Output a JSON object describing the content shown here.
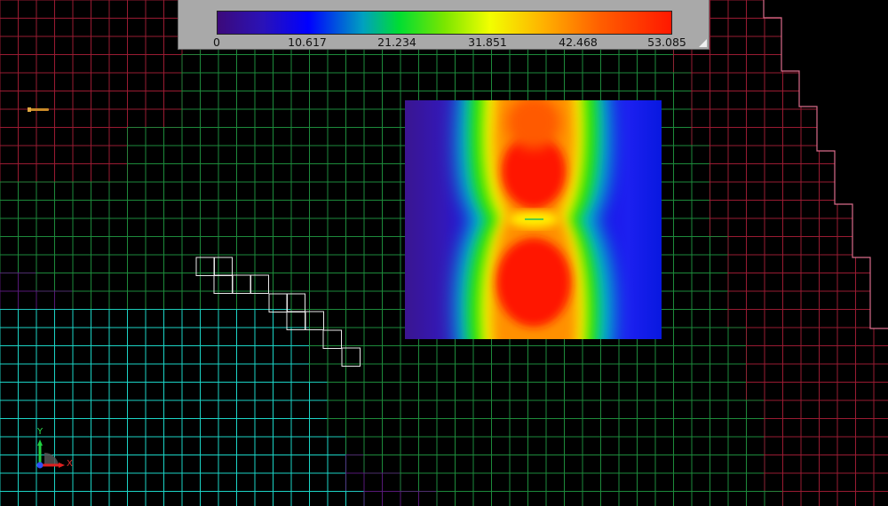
{
  "legend": {
    "ticks": [
      "0",
      "10.617",
      "21.234",
      "31.851",
      "42.468",
      "53.085"
    ],
    "min": 0,
    "max": 53.085
  },
  "triad": {
    "y_label": "Y",
    "x_label": "X"
  },
  "colors": {
    "mesh_green": "#1e8c3c",
    "mesh_red": "#9a1c33",
    "mesh_cyan": "#1dd6c8",
    "mesh_purple": "#5a1a7c",
    "mesh_white": "#e8e8e8",
    "mesh_pink": "#d86b8a"
  }
}
